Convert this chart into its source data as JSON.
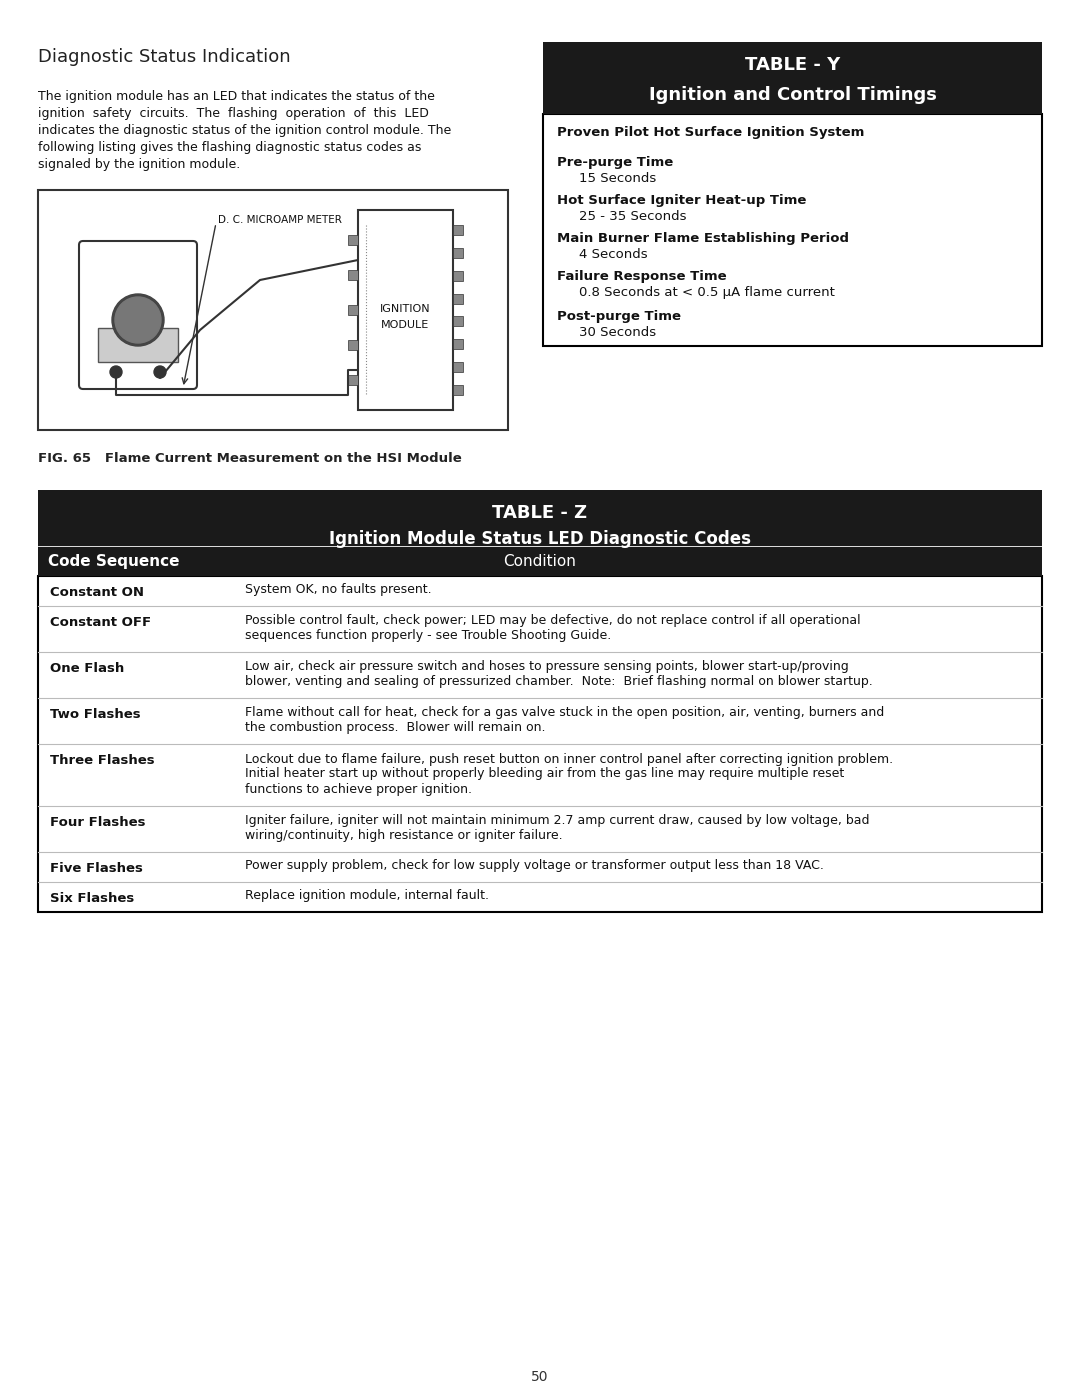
{
  "page_bg": "#ffffff",
  "section_title": "Diagnostic Status Indication",
  "body_lines": [
    "The ignition module has an LED that indicates the status of the",
    "ignition  safety  circuits.  The  flashing  operation  of  this  LED",
    "indicates the diagnostic status of the ignition control module. The",
    "following listing gives the flashing diagnostic status codes as",
    "signaled by the ignition module."
  ],
  "fig_caption": "FIG. 65   Flame Current Measurement on the HSI Module",
  "table_y_title1": "TABLE - Y",
  "table_y_title2": "Ignition and Control Timings",
  "table_y_header_bg": "#1a1a1a",
  "table_y_border": "#000000",
  "table_y_items": [
    {
      "label": "Proven Pilot Hot Surface Ignition System",
      "value": "",
      "bold_label": true
    },
    {
      "label": "Pre-purge Time",
      "value": "15 Seconds",
      "bold_label": true
    },
    {
      "label": "Hot Surface Igniter Heat-up Time",
      "value": "25 - 35 Seconds",
      "bold_label": true
    },
    {
      "label": "Main Burner Flame Establishing Period",
      "value": "4 Seconds",
      "bold_label": true
    },
    {
      "label": "Failure Response Time",
      "value": "0.8 Seconds at < 0.5 μA flame current",
      "bold_label": true
    },
    {
      "label": "Post-purge Time",
      "value": "30 Seconds",
      "bold_label": true
    }
  ],
  "table_z_title1": "TABLE - Z",
  "table_z_title2": "Ignition Module Status LED Diagnostic Codes",
  "table_z_col1": "Code Sequence",
  "table_z_col2": "Condition",
  "table_z_header_bg": "#1a1a1a",
  "table_z_border": "#000000",
  "table_z_rows": [
    {
      "code": "Constant ON",
      "condition_lines": [
        "System OK, no faults present."
      ]
    },
    {
      "code": "Constant OFF",
      "condition_lines": [
        "Possible control fault, check power; LED may be defective, do not replace control if all operational",
        "sequences function properly - see Trouble Shooting Guide."
      ]
    },
    {
      "code": "One Flash",
      "condition_lines": [
        "Low air, check air pressure switch and hoses to pressure sensing points, blower start-up/proving",
        "blower, venting and sealing of pressurized chamber.  Note:  Brief flashing normal on blower startup."
      ]
    },
    {
      "code": "Two Flashes",
      "condition_lines": [
        "Flame without call for heat, check for a gas valve stuck in the open position, air, venting, burners and",
        "the combustion process.  Blower will remain on."
      ]
    },
    {
      "code": "Three Flashes",
      "condition_lines": [
        "Lockout due to flame failure, push reset button on inner control panel after correcting ignition problem.",
        "Initial heater start up without properly bleeding air from the gas line may require multiple reset",
        "functions to achieve proper ignition."
      ]
    },
    {
      "code": "Four Flashes",
      "condition_lines": [
        "Igniter failure, igniter will not maintain minimum 2.7 amp current draw, caused by low voltage, bad",
        "wiring/continuity, high resistance or igniter failure."
      ]
    },
    {
      "code": "Five Flashes",
      "condition_lines": [
        "Power supply problem, check for low supply voltage or transformer output less than 18 VAC."
      ]
    },
    {
      "code": "Six Flashes",
      "condition_lines": [
        "Replace ignition module, internal fault."
      ]
    }
  ],
  "page_number": "50"
}
